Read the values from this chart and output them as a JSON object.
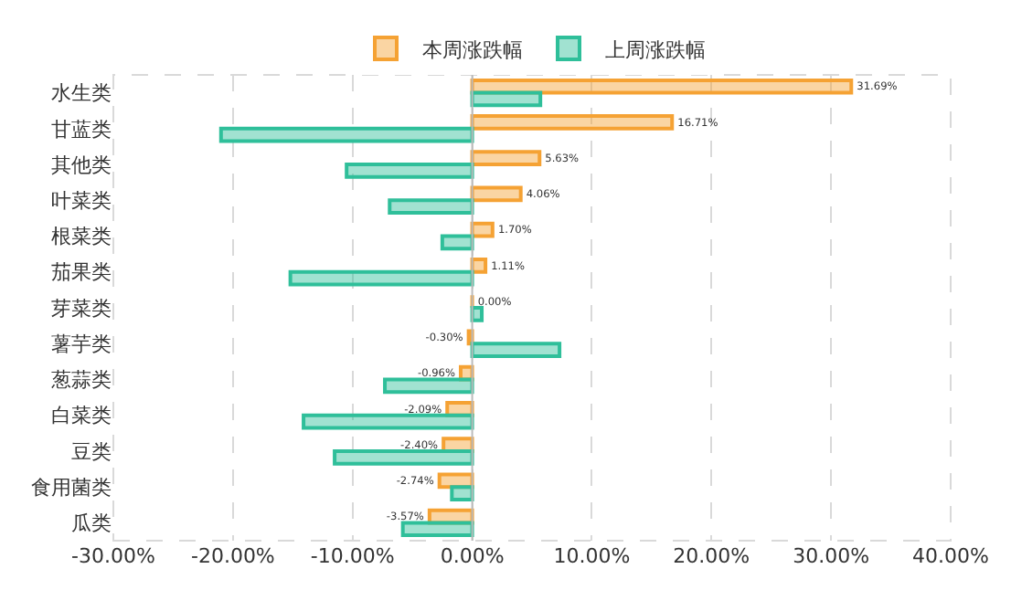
{
  "chart_data": {
    "type": "bar",
    "orientation": "horizontal",
    "categories": [
      "水生类",
      "甘蓝类",
      "其他类",
      "叶菜类",
      "根菜类",
      "茄果类",
      "芽菜类",
      "薯芋类",
      "葱蒜类",
      "白菜类",
      "豆类",
      "食用菌类",
      "瓜类"
    ],
    "series": [
      {
        "name": "本周涨跌幅",
        "color": "#f5a234",
        "values": [
          31.69,
          16.71,
          5.63,
          4.06,
          1.7,
          1.11,
          0.0,
          -0.3,
          -0.96,
          -2.09,
          -2.4,
          -2.74,
          -3.57
        ],
        "value_labels": [
          "31.69%",
          "16.71%",
          "5.63%",
          "4.06%",
          "1.70%",
          "1.11%",
          "0.00%",
          "-0.30%",
          "-0.96%",
          "-2.09%",
          "-2.40%",
          "-2.74%",
          "-3.57%"
        ]
      },
      {
        "name": "上周涨跌幅",
        "color": "#2fbf9a",
        "values": [
          5.7,
          -21.0,
          -10.5,
          -6.9,
          -2.5,
          -15.2,
          0.8,
          7.3,
          -7.3,
          -14.1,
          -11.5,
          -1.7,
          -5.8
        ]
      }
    ],
    "xlim": [
      -30,
      40
    ],
    "xticks": [
      {
        "value": -30,
        "label": "-30.00%"
      },
      {
        "value": -20,
        "label": "-20.00%"
      },
      {
        "value": -10,
        "label": "-10.00%"
      },
      {
        "value": 0,
        "label": "0.00%"
      },
      {
        "value": 10,
        "label": "10.00%"
      },
      {
        "value": 20,
        "label": "20.00%"
      },
      {
        "value": 30,
        "label": "30.00%"
      },
      {
        "value": 40,
        "label": "40.00%"
      }
    ],
    "grid": "x",
    "legend": "top"
  }
}
